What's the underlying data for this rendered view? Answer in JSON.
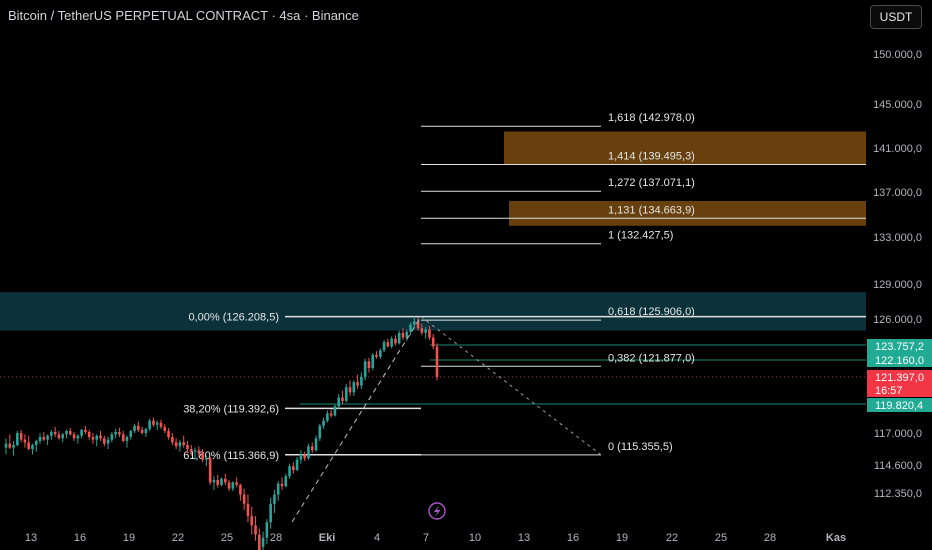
{
  "header": {
    "title": "Bitcoin / TetherUS PERPETUAL CONTRACT · 4sa · Binance",
    "currency_button": "USDT"
  },
  "colors": {
    "up": "#26a69a",
    "down": "#ef5350",
    "fib_zone": "#8a5513",
    "teal_zone": "#0d3a45",
    "price_badge_red": "#f23645",
    "price_badge_green": "#22ab94",
    "fib_line": "#e0e0e0",
    "axis_text": "#b2b5be"
  },
  "chart_data": {
    "type": "candlestick",
    "title": "Bitcoin / TetherUS PERPETUAL CONTRACT · 4sa · Binance",
    "ylim": [
      110500,
      152000
    ],
    "y_axis": {
      "side": "right",
      "ticks": [
        {
          "label": "150.000,0",
          "value": 150000
        },
        {
          "label": "145.000,0",
          "value": 145000
        },
        {
          "label": "141.000,0",
          "value": 141000
        },
        {
          "label": "137.000,0",
          "value": 137000
        },
        {
          "label": "133.000,0",
          "value": 133000
        },
        {
          "label": "129.000,0",
          "value": 129000
        },
        {
          "label": "126.000,0",
          "value": 126000
        },
        {
          "label": "117.000,0",
          "value": 117000
        },
        {
          "label": "114.600,0",
          "value": 114600
        },
        {
          "label": "112.350,0",
          "value": 112350
        }
      ]
    },
    "x_axis": {
      "ticks": [
        "13",
        "16",
        "19",
        "22",
        "25",
        "28",
        "Eki",
        "4",
        "7",
        "10",
        "13",
        "16",
        "19",
        "22",
        "25",
        "28",
        "Kas"
      ],
      "bold_ticks": [
        "Eki",
        "Kas"
      ]
    },
    "price_badges": [
      {
        "label": "123.757,2",
        "value": 123757.2,
        "kind": "green"
      },
      {
        "label": "122.160,0",
        "value": 122160.0,
        "kind": "green"
      },
      {
        "label": "121.397,0",
        "value": 121397.0,
        "kind": "red"
      },
      {
        "label": "16:57",
        "kind": "red-timer"
      },
      {
        "label": "119.820,4",
        "value": 119820.4,
        "kind": "green"
      }
    ],
    "fib_extension": [
      {
        "label": "1,618 (142.978,0)",
        "value": 142978.0
      },
      {
        "label": "1,414 (139.495,3)",
        "value": 139495.3
      },
      {
        "label": "1,272 (137.071,1)",
        "value": 137071.1
      },
      {
        "label": "1,131 (134.663,9)",
        "value": 134663.9
      },
      {
        "label": "1 (132.427,5)",
        "value": 132427.5
      },
      {
        "label": "0,618 (125.906,0)",
        "value": 125906.0
      },
      {
        "label": "0,382 (121.877,0)",
        "value": 121877.0
      },
      {
        "label": "0 (115.355,5)",
        "value": 115355.5
      }
    ],
    "fib_retracement": [
      {
        "label": "0,00% (126.208,5)",
        "value": 126208.5
      },
      {
        "label": "38,20% (119.392,6)",
        "value": 119392.6
      },
      {
        "label": "61,80% (115.366,9)",
        "value": 115366.9
      }
    ],
    "zones": [
      {
        "kind": "teal",
        "from": 125000,
        "to": 128300
      },
      {
        "kind": "brown",
        "from": 139500,
        "to": 142500
      },
      {
        "kind": "brown",
        "from": 134000,
        "to": 136200
      }
    ],
    "candles": [
      [
        115900,
        116600,
        115400,
        116200
      ],
      [
        116200,
        116900,
        115800,
        115900
      ],
      [
        115900,
        116400,
        115300,
        116100
      ],
      [
        116100,
        117200,
        116000,
        117000
      ],
      [
        117000,
        117300,
        116300,
        116500
      ],
      [
        116500,
        116900,
        115900,
        116300
      ],
      [
        116300,
        116800,
        115700,
        115800
      ],
      [
        115800,
        116200,
        115400,
        116100
      ],
      [
        116100,
        116500,
        115600,
        116400
      ],
      [
        116400,
        117000,
        116200,
        116700
      ],
      [
        116700,
        117100,
        116400,
        116500
      ],
      [
        116500,
        116900,
        116100,
        116800
      ],
      [
        116800,
        117300,
        116500,
        117100
      ],
      [
        117100,
        117600,
        116700,
        116900
      ],
      [
        116900,
        117200,
        116500,
        116600
      ],
      [
        116600,
        117000,
        116300,
        116900
      ],
      [
        116900,
        117300,
        116600,
        117200
      ],
      [
        117200,
        117500,
        116800,
        116900
      ],
      [
        116900,
        117100,
        116400,
        116600
      ],
      [
        116600,
        116900,
        116200,
        116800
      ],
      [
        116800,
        117400,
        116600,
        117300
      ],
      [
        117300,
        117700,
        116900,
        117100
      ],
      [
        117100,
        117300,
        116500,
        116700
      ],
      [
        116700,
        117000,
        116200,
        116500
      ],
      [
        116500,
        116900,
        116000,
        116800
      ],
      [
        116800,
        117200,
        116400,
        116600
      ],
      [
        116600,
        116800,
        116000,
        116200
      ],
      [
        116200,
        116700,
        115800,
        116500
      ],
      [
        116500,
        117100,
        116300,
        116900
      ],
      [
        116900,
        117400,
        116600,
        117100
      ],
      [
        117100,
        117500,
        116700,
        116900
      ],
      [
        116900,
        117200,
        116300,
        116400
      ],
      [
        116400,
        116800,
        115900,
        116700
      ],
      [
        116700,
        117300,
        116500,
        117200
      ],
      [
        117200,
        117900,
        117000,
        117700
      ],
      [
        117700,
        118100,
        117100,
        117300
      ],
      [
        117300,
        117600,
        116900,
        117000
      ],
      [
        117000,
        117500,
        116700,
        117400
      ],
      [
        117400,
        118400,
        117200,
        118200
      ],
      [
        118200,
        118500,
        117600,
        117800
      ],
      [
        117800,
        118200,
        117300,
        118000
      ],
      [
        118000,
        118300,
        117400,
        117600
      ],
      [
        117600,
        117900,
        117000,
        117200
      ],
      [
        117200,
        117500,
        116500,
        116700
      ],
      [
        116700,
        117000,
        116100,
        116300
      ],
      [
        116300,
        116600,
        115800,
        116000
      ],
      [
        116000,
        116500,
        115600,
        116300
      ],
      [
        116300,
        116800,
        115900,
        116100
      ],
      [
        116100,
        116400,
        115500,
        115800
      ],
      [
        115800,
        116100,
        115300,
        115600
      ],
      [
        115600,
        115900,
        115000,
        115700
      ],
      [
        115700,
        116000,
        115200,
        115500
      ],
      [
        115500,
        115800,
        114800,
        115000
      ],
      [
        115000,
        115300,
        114500,
        115100
      ],
      [
        115100,
        115200,
        113000,
        113200
      ],
      [
        113200,
        113700,
        112600,
        113400
      ],
      [
        113400,
        113800,
        112800,
        113000
      ],
      [
        113000,
        113600,
        112900,
        113500
      ],
      [
        113500,
        113900,
        113000,
        113200
      ],
      [
        113200,
        113400,
        112500,
        112700
      ],
      [
        112700,
        113300,
        112500,
        113200
      ],
      [
        113200,
        113600,
        112800,
        113000
      ],
      [
        113000,
        113100,
        112100,
        112300
      ],
      [
        112300,
        112700,
        111800,
        112000
      ],
      [
        112000,
        112300,
        111400,
        111600
      ],
      [
        111600,
        111900,
        111000,
        111300
      ],
      [
        111300,
        111600,
        110800,
        111000
      ],
      [
        111000,
        111200,
        110300,
        110500
      ],
      [
        110600,
        111100,
        110300,
        110900
      ],
      [
        110900,
        111500,
        110700,
        111400
      ],
      [
        111400,
        112200,
        111200,
        112000
      ],
      [
        112000,
        112600,
        111700,
        112300
      ],
      [
        112300,
        113300,
        112100,
        113100
      ],
      [
        113100,
        113600,
        112600,
        112900
      ],
      [
        112900,
        113900,
        112800,
        113700
      ],
      [
        113700,
        114700,
        113500,
        114500
      ],
      [
        114500,
        114800,
        113900,
        114200
      ],
      [
        114200,
        115200,
        114100,
        115000
      ],
      [
        115000,
        115700,
        114700,
        115400
      ],
      [
        115400,
        115600,
        114900,
        115100
      ],
      [
        115100,
        116200,
        115000,
        116000
      ],
      [
        116000,
        116300,
        115500,
        115700
      ],
      [
        115700,
        116800,
        115600,
        116600
      ],
      [
        116600,
        117900,
        116400,
        117700
      ],
      [
        117700,
        118500,
        117400,
        118200
      ],
      [
        118200,
        119200,
        118000,
        118900
      ],
      [
        118900,
        119300,
        118500,
        118700
      ],
      [
        118700,
        119800,
        118600,
        119600
      ],
      [
        119600,
        120400,
        119300,
        120200
      ],
      [
        120200,
        120600,
        119800,
        120000
      ],
      [
        120000,
        121000,
        119900,
        120800
      ],
      [
        120800,
        121200,
        120300,
        120500
      ],
      [
        120500,
        121200,
        120300,
        121100
      ],
      [
        121100,
        121500,
        120700,
        120900
      ],
      [
        120900,
        121600,
        120700,
        121400
      ],
      [
        121400,
        122300,
        121200,
        122100
      ],
      [
        122100,
        122400,
        121600,
        121800
      ],
      [
        121800,
        122900,
        121700,
        122700
      ],
      [
        122700,
        123100,
        122300,
        122500
      ],
      [
        122500,
        123400,
        122300,
        123200
      ],
      [
        123200,
        124200,
        123000,
        124000
      ],
      [
        124000,
        124300,
        123500,
        123600
      ],
      [
        123600,
        124500,
        123400,
        124300
      ],
      [
        124300,
        124600,
        123700,
        123900
      ],
      [
        123900,
        125000,
        123800,
        124800
      ],
      [
        124800,
        125200,
        124200,
        124400
      ],
      [
        124400,
        125100,
        124100,
        124900
      ],
      [
        124900,
        125700,
        124600,
        125500
      ],
      [
        125500,
        126208,
        125200,
        125800
      ],
      [
        125800,
        126100,
        125000,
        125200
      ],
      [
        125200,
        125600,
        124600,
        124800
      ],
      [
        124800,
        125300,
        124300,
        125100
      ],
      [
        125100,
        125400,
        124200,
        124400
      ],
      [
        124400,
        124700,
        123300,
        123600
      ],
      [
        123600,
        123900,
        121200,
        121397
      ]
    ]
  }
}
